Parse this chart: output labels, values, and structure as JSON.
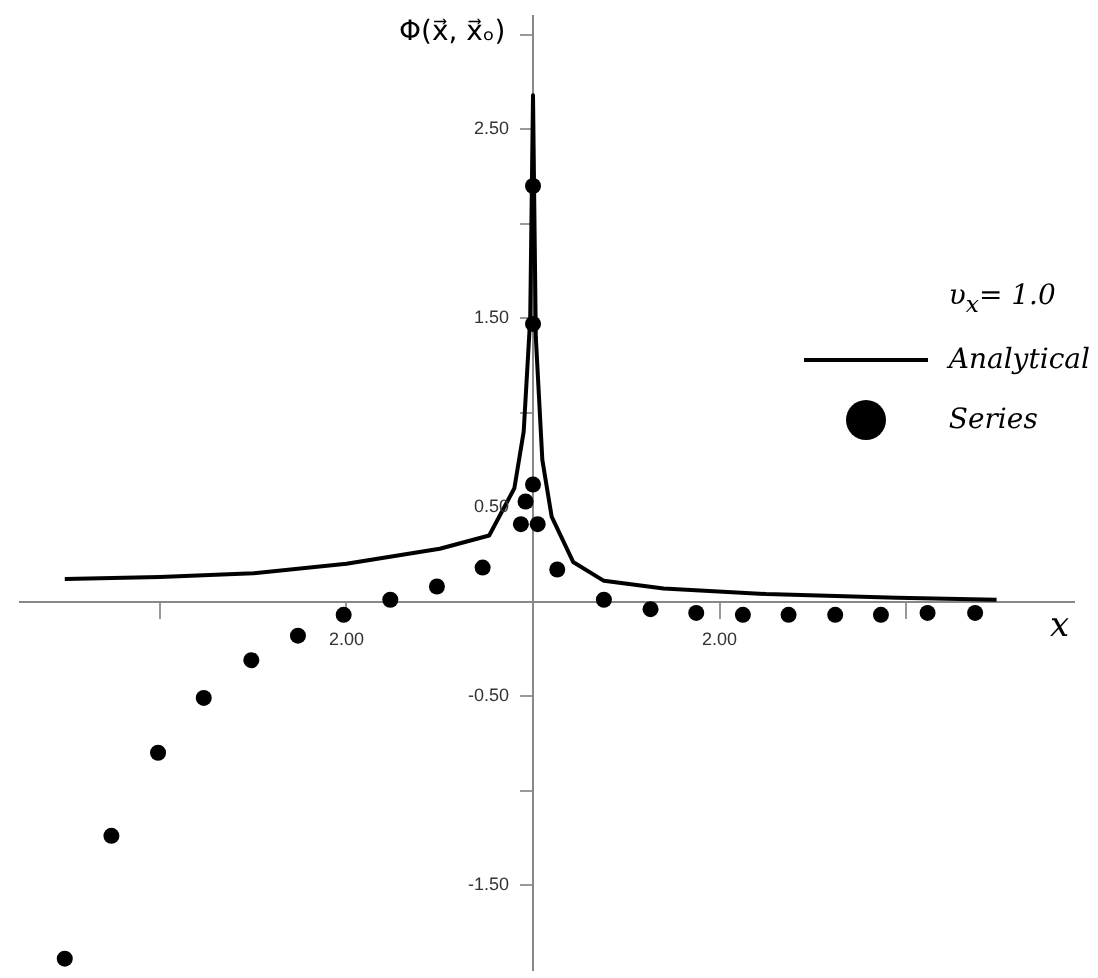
{
  "chart_data": {
    "type": "line",
    "xlabel": "x",
    "ylabel": "Φ(x⃗, x⃗ₒ)",
    "legend_title": "υ$_{x}$= 1.0",
    "legend": "right",
    "grid": false,
    "xlim": [
      -5.5,
      5.8
    ],
    "ylim": [
      -1.95,
      3.1
    ],
    "xticks": [
      {
        "value": -4,
        "label": null
      },
      {
        "value": -2,
        "label": "2.00"
      },
      {
        "value": 2,
        "label": "2.00"
      },
      {
        "value": 4,
        "label": null
      }
    ],
    "yticks": [
      {
        "value": -1.5,
        "label": "-1.50"
      },
      {
        "value": -1,
        "label": null
      },
      {
        "value": -0.5,
        "label": "-0.50"
      },
      {
        "value": 0.5,
        "label": "0.50"
      },
      {
        "value": 1,
        "label": null
      },
      {
        "value": 1.5,
        "label": "1.50"
      },
      {
        "value": 2,
        "label": null
      },
      {
        "value": 2.5,
        "label": "2.50"
      },
      {
        "value": 3,
        "label": null
      }
    ],
    "series": [
      {
        "name": "Analytical",
        "type": "line",
        "color": "#000000",
        "marker": "none",
        "line_style": "solid",
        "x": [
          -5.02,
          -4,
          -3,
          -2,
          -1,
          -0.47,
          -0.2,
          -0.1,
          -0.03,
          0,
          0.03,
          0.1,
          0.2,
          0.43,
          0.76,
          1.4,
          2.5,
          3.9,
          4.97
        ],
        "values": [
          0.12,
          0.13,
          0.15,
          0.2,
          0.28,
          0.35,
          0.6,
          0.9,
          1.5,
          2.68,
          1.4,
          0.75,
          0.45,
          0.21,
          0.11,
          0.07,
          0.04,
          0.02,
          0.01
        ]
      },
      {
        "name": "Series",
        "type": "scatter",
        "color": "#000000",
        "marker": "circle",
        "x": [
          -5.02,
          -4.52,
          -4.02,
          -3.53,
          -3.02,
          -2.52,
          -2.03,
          -1.53,
          -1.03,
          -0.54,
          -0.13,
          0.05,
          -0.08,
          0,
          0,
          0,
          0.26,
          0.76,
          1.26,
          1.75,
          2.25,
          2.74,
          3.24,
          3.73,
          4.23,
          4.74
        ],
        "values": [
          -1.89,
          -1.24,
          -0.8,
          -0.51,
          -0.31,
          -0.18,
          -0.07,
          0.01,
          0.08,
          0.18,
          0.41,
          0.41,
          0.53,
          0.62,
          1.47,
          2.2,
          0.17,
          0.01,
          -0.04,
          -0.06,
          -0.07,
          -0.07,
          -0.07,
          -0.07,
          -0.06,
          -0.06
        ]
      }
    ]
  }
}
